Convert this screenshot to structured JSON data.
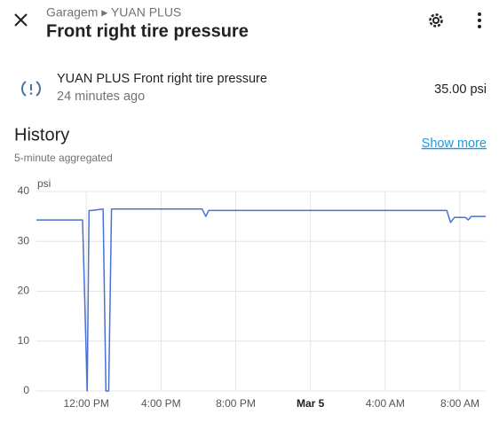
{
  "header": {
    "breadcrumb": "Garagem ▸ YUAN PLUS",
    "title": "Front right tire pressure"
  },
  "entity": {
    "name": "YUAN PLUS Front right tire pressure",
    "last_changed": "24 minutes ago",
    "state": "35.00 psi"
  },
  "history": {
    "title": "History",
    "show_more": "Show more",
    "subtitle": "5-minute aggregated"
  },
  "chart_data": {
    "type": "line",
    "y_unit": "psi",
    "x": [
      9.33,
      11.8,
      12.05,
      12.15,
      12.3,
      12.9,
      13.05,
      13.2,
      13.35,
      18.2,
      18.4,
      18.55,
      31.3,
      31.5,
      31.7,
      32.3,
      32.45,
      32.6,
      33.38
    ],
    "series": [
      {
        "name": "YUAN PLUS Front right tire pressure",
        "color": "#4a72d4",
        "values": [
          34.3,
          34.3,
          0,
          36.2,
          36.2,
          36.5,
          0,
          0,
          36.5,
          36.5,
          35,
          36.2,
          36.2,
          33.8,
          34.8,
          34.8,
          34.3,
          35,
          35
        ]
      }
    ],
    "xlim": [
      9.33,
      33.38
    ],
    "xticks": [
      {
        "value": 12,
        "label": "12:00 PM"
      },
      {
        "value": 16,
        "label": "4:00 PM"
      },
      {
        "value": 20,
        "label": "8:00 PM"
      },
      {
        "value": 24,
        "label": "Mar 5"
      },
      {
        "value": 28,
        "label": "4:00 AM"
      },
      {
        "value": 32,
        "label": "8:00 AM"
      }
    ],
    "ylim": [
      0,
      40
    ],
    "yticks": [
      0,
      10,
      20,
      30,
      40
    ],
    "grid": true
  }
}
